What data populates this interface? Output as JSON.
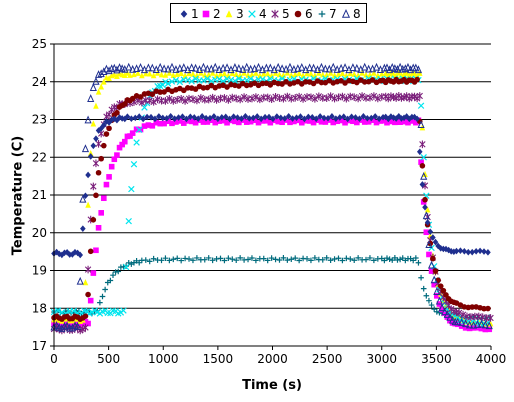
{
  "chart_data": {
    "type": "scatter",
    "xlabel": "Time (s)",
    "ylabel": "Temperature (C)",
    "xlim": [
      0,
      4000
    ],
    "ylim": [
      17,
      25
    ],
    "x_ticks": [
      "0",
      "500",
      "1000",
      "1500",
      "2000",
      "2500",
      "3000",
      "3500",
      "4000"
    ],
    "y_ticks": [
      "17",
      "18",
      "19",
      "20",
      "21",
      "22",
      "23",
      "24",
      "25"
    ],
    "grid": "horizontal",
    "legend_position": "top",
    "series": [
      {
        "name": "1",
        "marker": "diamond",
        "color": "#1f2f8f",
        "t0": 250,
        "t1": 3330,
        "start": 19.45,
        "plateau": 23.05,
        "drift": 0.0,
        "end": 19.5,
        "tau_rise": 70,
        "tau_fall": 60
      },
      {
        "name": "2",
        "marker": "square",
        "color": "#ff00ff",
        "t0": 320,
        "t1": 3340,
        "start": 17.6,
        "plateau": 22.95,
        "drift": 0.0,
        "end": 17.45,
        "tau_rise": 140,
        "tau_fall": 90
      },
      {
        "name": "3",
        "marker": "triangle",
        "color": "#ffff00",
        "t0": 280,
        "t1": 3350,
        "start": 17.7,
        "plateau": 24.2,
        "drift": 0.0,
        "end": 17.6,
        "tau_rise": 50,
        "tau_fall": 90
      },
      {
        "name": "4",
        "marker": "x",
        "color": "#00e5ee",
        "t0": 640,
        "t1": 3350,
        "start": 17.9,
        "plateau": 24.05,
        "drift": 0.0,
        "end": 17.6,
        "tau_rise": 90,
        "tau_fall": 90
      },
      {
        "name": "5",
        "marker": "star",
        "color": "#7b1f7b",
        "t0": 290,
        "t1": 3350,
        "start": 17.45,
        "plateau": 23.4,
        "drift": 0.2,
        "end": 17.75,
        "tau_rise": 70,
        "tau_fall": 90
      },
      {
        "name": "6",
        "marker": "circle",
        "color": "#800000",
        "t0": 300,
        "t1": 3330,
        "start": 17.75,
        "plateau": 23.4,
        "drift": 0.65,
        "end": 18.0,
        "tau_rise": 100,
        "tau_fall": 90
      },
      {
        "name": "7",
        "marker": "plus",
        "color": "#006b7d",
        "t0": 400,
        "t1": 3330,
        "start": 17.9,
        "plateau": 19.3,
        "drift": 0.0,
        "end": 17.75,
        "tau_rise": 120,
        "tau_fall": 80
      },
      {
        "name": "8",
        "marker": "triangle-open",
        "color": "#1f2f8f",
        "t0": 230,
        "t1": 3340,
        "start": 17.5,
        "plateau": 24.35,
        "drift": 0.0,
        "end": 17.55,
        "tau_rise": 50,
        "tau_fall": 80
      }
    ]
  }
}
